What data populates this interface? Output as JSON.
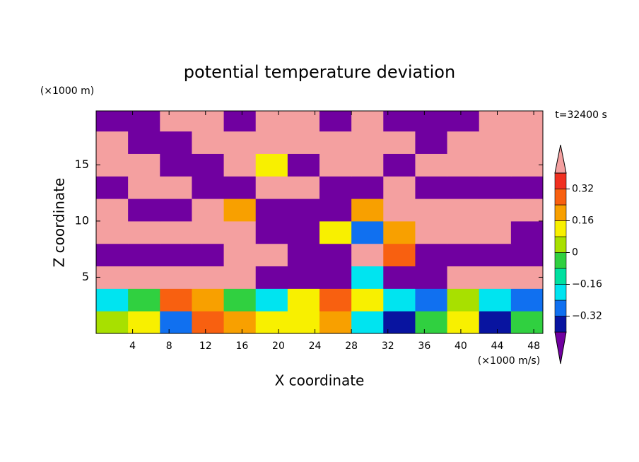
{
  "chart_data": {
    "type": "contour",
    "title": "potential temperature deviation",
    "x_label": "X coordinate",
    "y_label": "Z coordinate",
    "x_unit": "(×1000 m/s)",
    "y_unit": "(×1000 m)",
    "annotation": "t=32400 s",
    "xlim": [
      0,
      49
    ],
    "ylim": [
      0,
      19.8
    ],
    "xticks": [
      4,
      8,
      12,
      16,
      20,
      24,
      28,
      32,
      36,
      40,
      44,
      48
    ],
    "yticks": [
      5,
      10,
      15
    ],
    "levels": [
      -0.4,
      -0.32,
      -0.24,
      -0.16,
      -0.08,
      0,
      0.08,
      0.16,
      0.24,
      0.32,
      0.4
    ],
    "colors": [
      "#7000a0",
      "#0814a0",
      "#1070f0",
      "#00e4f0",
      "#00e0a0",
      "#30d040",
      "#a8e000",
      "#f8f000",
      "#f8a000",
      "#f86010",
      "#f03020",
      "#f4a0a0"
    ],
    "colorbar_ticks": [
      {
        "value": -0.32,
        "label": "−0.32"
      },
      {
        "value": -0.16,
        "label": "−0.16"
      },
      0,
      0.16,
      0.32
    ],
    "field": {
      "x": [
        1.75,
        5.25,
        8.75,
        12.25,
        15.75,
        19.25,
        22.75,
        26.25,
        29.75,
        33.25,
        36.75,
        40.25,
        43.75,
        47.25
      ],
      "z": [
        1,
        3,
        5,
        7,
        9,
        11,
        13,
        15,
        17,
        19
      ],
      "values": [
        [
          0.05,
          0.1,
          -0.3,
          0.25,
          0.2,
          0.1,
          0.12,
          0.2,
          -0.2,
          -0.35,
          0,
          0.1,
          -0.35,
          -0.05
        ],
        [
          -0.18,
          -0.05,
          0.3,
          0.22,
          0,
          -0.2,
          0.12,
          0.25,
          0.1,
          -0.2,
          -0.28,
          0.02,
          -0.2,
          -0.3
        ],
        [
          0.5,
          0.5,
          0.5,
          0.5,
          0.5,
          -0.5,
          -0.5,
          -0.5,
          -0.2,
          -0.5,
          -0.5,
          0.5,
          0.5,
          0.5
        ],
        [
          -0.5,
          -0.5,
          -0.5,
          -0.5,
          0.5,
          0.5,
          -0.5,
          -0.5,
          0.5,
          0.3,
          -0.5,
          -0.5,
          -0.5,
          -0.5
        ],
        [
          0.5,
          0.5,
          0.5,
          0.5,
          0.5,
          -0.5,
          -0.5,
          0.1,
          -0.3,
          0.2,
          0.5,
          0.5,
          0.5,
          -0.5
        ],
        [
          0.5,
          -0.5,
          -0.5,
          0.5,
          0.2,
          -0.5,
          -0.5,
          -0.5,
          0.2,
          0.5,
          0.5,
          0.5,
          0.5,
          0.5
        ],
        [
          -0.5,
          0.5,
          0.5,
          -0.5,
          -0.5,
          0.5,
          0.5,
          -0.5,
          -0.5,
          0.5,
          -0.5,
          -0.5,
          -0.5,
          -0.5
        ],
        [
          0.5,
          0.5,
          -0.5,
          -0.5,
          0.5,
          0.1,
          -0.5,
          0.5,
          0.5,
          -0.5,
          0.5,
          0.5,
          0.5,
          0.5
        ],
        [
          0.5,
          -0.5,
          -0.5,
          0.5,
          0.5,
          0.5,
          0.5,
          0.5,
          0.5,
          0.5,
          -0.5,
          0.5,
          0.5,
          0.5
        ],
        [
          -0.5,
          -0.5,
          0.5,
          0.5,
          -0.5,
          0.5,
          0.5,
          -0.5,
          0.5,
          -0.5,
          -0.5,
          -0.5,
          0.5,
          0.5
        ]
      ]
    }
  }
}
